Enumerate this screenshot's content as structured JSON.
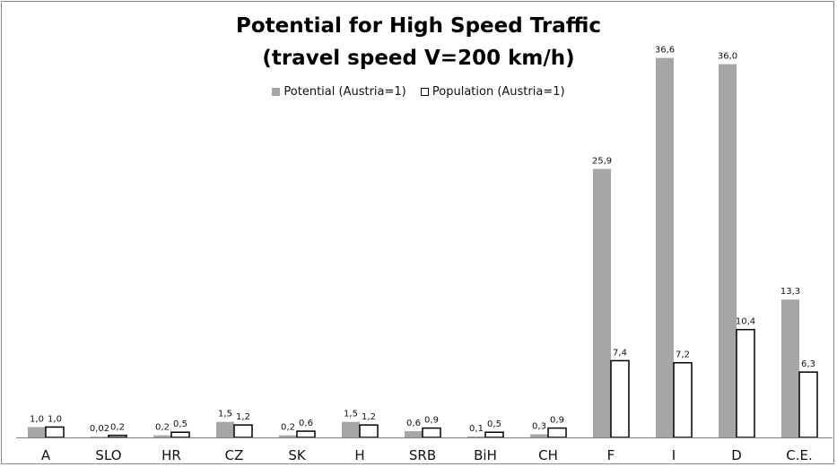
{
  "chart_data": {
    "type": "bar",
    "title": "Potential for High Speed Traffic",
    "subtitle": "(travel speed V=200 km/h)",
    "categories": [
      "A",
      "SLO",
      "HR",
      "CZ",
      "SK",
      "H",
      "SRB",
      "BiH",
      "CH",
      "F",
      "I",
      "D",
      "C.E."
    ],
    "series": [
      {
        "name": "Potential (Austria=1)",
        "color": "#a6a6a6",
        "values": [
          1.0,
          0.02,
          0.2,
          1.5,
          0.2,
          1.5,
          0.6,
          0.1,
          0.3,
          25.9,
          36.6,
          36.0,
          13.3
        ],
        "labels": [
          "1,0",
          "0,02",
          "0,2",
          "1,5",
          "0,2",
          "1,5",
          "0,6",
          "0,1",
          "0,3",
          "25,9",
          "36,6",
          "36,0",
          "13,3"
        ]
      },
      {
        "name": "Population (Austria=1)",
        "color": "#ffffff",
        "values": [
          1.0,
          0.2,
          0.5,
          1.2,
          0.6,
          1.2,
          0.9,
          0.5,
          0.9,
          7.4,
          7.2,
          10.4,
          6.3
        ],
        "labels": [
          "1,0",
          "0,2",
          "0,5",
          "1,2",
          "0,6",
          "1,2",
          "0,9",
          "0,5",
          "0,9",
          "7,4",
          "7,2",
          "10,4",
          "6,3"
        ]
      }
    ],
    "ylim": [
      0,
      37
    ],
    "grid": false,
    "legend_position": "top-center",
    "xlabel": "",
    "ylabel": ""
  }
}
